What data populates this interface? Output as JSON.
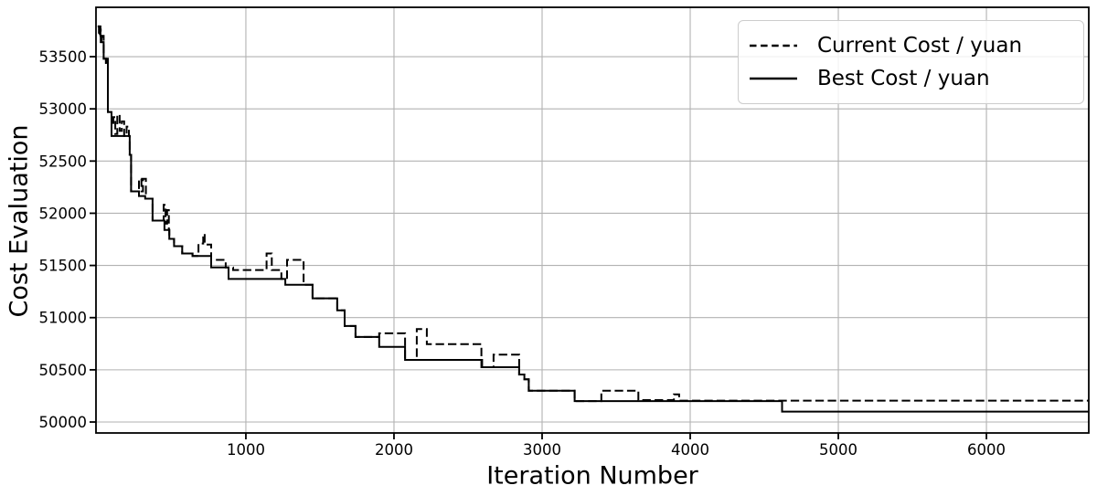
{
  "figure": {
    "background_color": "#ffffff",
    "line_color": "#000000",
    "grid_color": "#b2b2b2",
    "spine_color": "#000000",
    "legend_border_color": "#cccccc"
  },
  "legend": {
    "items": [
      {
        "label": "Current Cost / yuan",
        "line_style": "dashed"
      },
      {
        "label": "Best Cost / yuan",
        "line_style": "solid"
      }
    ]
  },
  "chart_data": {
    "type": "line",
    "title": "",
    "xlabel": "Iteration Number",
    "ylabel": "Cost Evaluation",
    "xlim": [
      -12,
      6691
    ],
    "ylim": [
      49895,
      53973
    ],
    "xticks": [
      1000,
      2000,
      3000,
      4000,
      5000,
      6000
    ],
    "yticks": [
      50000,
      50500,
      51000,
      51500,
      52000,
      52500,
      53000,
      53500
    ],
    "grid": true,
    "legend_position": "upper right",
    "step_mode": "post",
    "series": [
      {
        "name": "Current Cost / yuan",
        "line_style": "dashed",
        "color": "#000000",
        "points": [
          [
            0,
            53790
          ],
          [
            8,
            53700
          ],
          [
            14,
            53760
          ],
          [
            20,
            53640
          ],
          [
            30,
            53700
          ],
          [
            40,
            53480
          ],
          [
            55,
            53440
          ],
          [
            62,
            53480
          ],
          [
            68,
            52970
          ],
          [
            93,
            52850
          ],
          [
            105,
            52920
          ],
          [
            118,
            52760
          ],
          [
            132,
            52945
          ],
          [
            148,
            52790
          ],
          [
            162,
            52880
          ],
          [
            178,
            52740
          ],
          [
            195,
            52830
          ],
          [
            210,
            52740
          ],
          [
            216,
            52560
          ],
          [
            225,
            52210
          ],
          [
            278,
            52330
          ],
          [
            295,
            52210
          ],
          [
            305,
            52330
          ],
          [
            325,
            52140
          ],
          [
            370,
            51930
          ],
          [
            445,
            52080
          ],
          [
            458,
            51900
          ],
          [
            468,
            52030
          ],
          [
            480,
            51840
          ],
          [
            483,
            51755
          ],
          [
            515,
            51685
          ],
          [
            570,
            51615
          ],
          [
            640,
            51590
          ],
          [
            680,
            51710
          ],
          [
            712,
            51800
          ],
          [
            722,
            51700
          ],
          [
            766,
            51553
          ],
          [
            864,
            51480
          ],
          [
            914,
            51456
          ],
          [
            1140,
            51615
          ],
          [
            1175,
            51456
          ],
          [
            1240,
            51370
          ],
          [
            1278,
            51553
          ],
          [
            1390,
            51315
          ],
          [
            1450,
            51185
          ],
          [
            1617,
            51070
          ],
          [
            1667,
            50920
          ],
          [
            1740,
            50815
          ],
          [
            1900,
            50850
          ],
          [
            2075,
            50595
          ],
          [
            2154,
            50890
          ],
          [
            2222,
            50746
          ],
          [
            2590,
            50525
          ],
          [
            2672,
            50645
          ],
          [
            2845,
            50455
          ],
          [
            2880,
            50410
          ],
          [
            2910,
            50300
          ],
          [
            3220,
            50200
          ],
          [
            3400,
            50300
          ],
          [
            3650,
            50210
          ],
          [
            3890,
            50265
          ],
          [
            3925,
            50205
          ],
          [
            6691,
            50205
          ]
        ]
      },
      {
        "name": "Best Cost / yuan",
        "line_style": "solid",
        "color": "#000000",
        "points": [
          [
            0,
            53790
          ],
          [
            18,
            53700
          ],
          [
            25,
            53640
          ],
          [
            40,
            53480
          ],
          [
            55,
            53440
          ],
          [
            68,
            52970
          ],
          [
            93,
            52740
          ],
          [
            216,
            52560
          ],
          [
            225,
            52210
          ],
          [
            278,
            52165
          ],
          [
            320,
            52140
          ],
          [
            370,
            51930
          ],
          [
            450,
            51840
          ],
          [
            483,
            51755
          ],
          [
            515,
            51685
          ],
          [
            570,
            51615
          ],
          [
            640,
            51590
          ],
          [
            766,
            51482
          ],
          [
            883,
            51370
          ],
          [
            1266,
            51315
          ],
          [
            1450,
            51185
          ],
          [
            1617,
            51070
          ],
          [
            1667,
            50920
          ],
          [
            1740,
            50815
          ],
          [
            1900,
            50720
          ],
          [
            2075,
            50595
          ],
          [
            2595,
            50525
          ],
          [
            2845,
            50455
          ],
          [
            2880,
            50410
          ],
          [
            2910,
            50300
          ],
          [
            3220,
            50200
          ],
          [
            4620,
            50100
          ],
          [
            6691,
            50100
          ]
        ]
      }
    ]
  }
}
